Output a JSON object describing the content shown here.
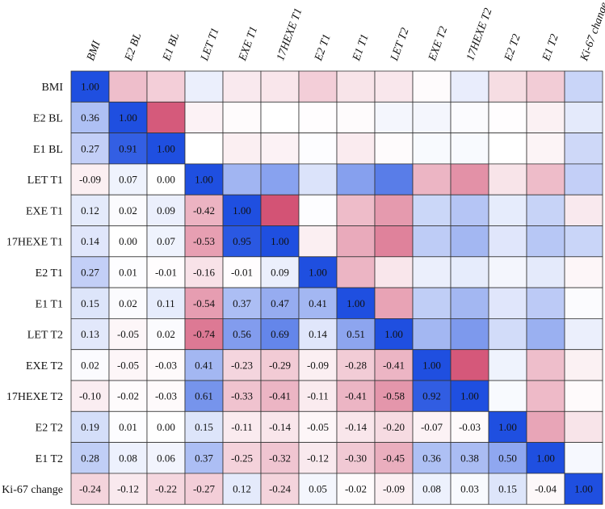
{
  "chart_data": {
    "type": "heatmap",
    "title": "",
    "variables": [
      "BMI",
      "E2 BL",
      "E1 BL",
      "LET T1",
      "EXE T1",
      "17HEXE T1",
      "E2 T1",
      "E1 T1",
      "LET T2",
      "EXE T2",
      "17HEXE T2",
      "E2 T2",
      "E1 T2",
      "Ki-67 change"
    ],
    "lower_values": [
      [
        1.0,
        null,
        null,
        null,
        null,
        null,
        null,
        null,
        null,
        null,
        null,
        null,
        null,
        null
      ],
      [
        0.36,
        1.0,
        null,
        null,
        null,
        null,
        null,
        null,
        null,
        null,
        null,
        null,
        null,
        null
      ],
      [
        0.27,
        0.91,
        1.0,
        null,
        null,
        null,
        null,
        null,
        null,
        null,
        null,
        null,
        null,
        null
      ],
      [
        -0.09,
        0.07,
        0.0,
        1.0,
        null,
        null,
        null,
        null,
        null,
        null,
        null,
        null,
        null,
        null
      ],
      [
        0.12,
        0.02,
        0.09,
        -0.42,
        1.0,
        null,
        null,
        null,
        null,
        null,
        null,
        null,
        null,
        null
      ],
      [
        0.14,
        0.0,
        0.07,
        -0.53,
        0.95,
        1.0,
        null,
        null,
        null,
        null,
        null,
        null,
        null,
        null
      ],
      [
        0.27,
        0.01,
        -0.01,
        -0.16,
        -0.01,
        0.09,
        1.0,
        null,
        null,
        null,
        null,
        null,
        null,
        null
      ],
      [
        0.15,
        0.02,
        0.11,
        -0.54,
        0.37,
        0.47,
        0.41,
        1.0,
        null,
        null,
        null,
        null,
        null,
        null
      ],
      [
        0.13,
        -0.05,
        0.02,
        -0.74,
        0.56,
        0.69,
        0.14,
        0.51,
        1.0,
        null,
        null,
        null,
        null,
        null
      ],
      [
        0.02,
        -0.05,
        -0.03,
        0.41,
        -0.23,
        -0.29,
        -0.09,
        -0.28,
        -0.41,
        1.0,
        null,
        null,
        null,
        null
      ],
      [
        -0.1,
        -0.02,
        -0.03,
        0.61,
        -0.33,
        -0.41,
        -0.11,
        -0.41,
        -0.58,
        0.92,
        1.0,
        null,
        null,
        null
      ],
      [
        0.19,
        0.01,
        0.0,
        0.15,
        -0.11,
        -0.14,
        -0.05,
        -0.14,
        -0.2,
        -0.07,
        -0.03,
        1.0,
        null,
        null
      ],
      [
        0.28,
        0.08,
        0.06,
        0.37,
        -0.25,
        -0.32,
        -0.12,
        -0.3,
        -0.45,
        0.36,
        0.38,
        0.5,
        1.0,
        null
      ],
      [
        -0.24,
        -0.12,
        -0.22,
        -0.27,
        0.12,
        -0.24,
        0.05,
        -0.02,
        -0.09,
        0.08,
        0.03,
        0.15,
        -0.04,
        1.0
      ]
    ],
    "value_range": [
      -1,
      1
    ],
    "color_scale": {
      "negative": "#d14a6e",
      "zero": "#ffffff",
      "positive": "#1f4fe0"
    },
    "upper_triangle": "color only",
    "lower_triangle": "numbers with color"
  }
}
